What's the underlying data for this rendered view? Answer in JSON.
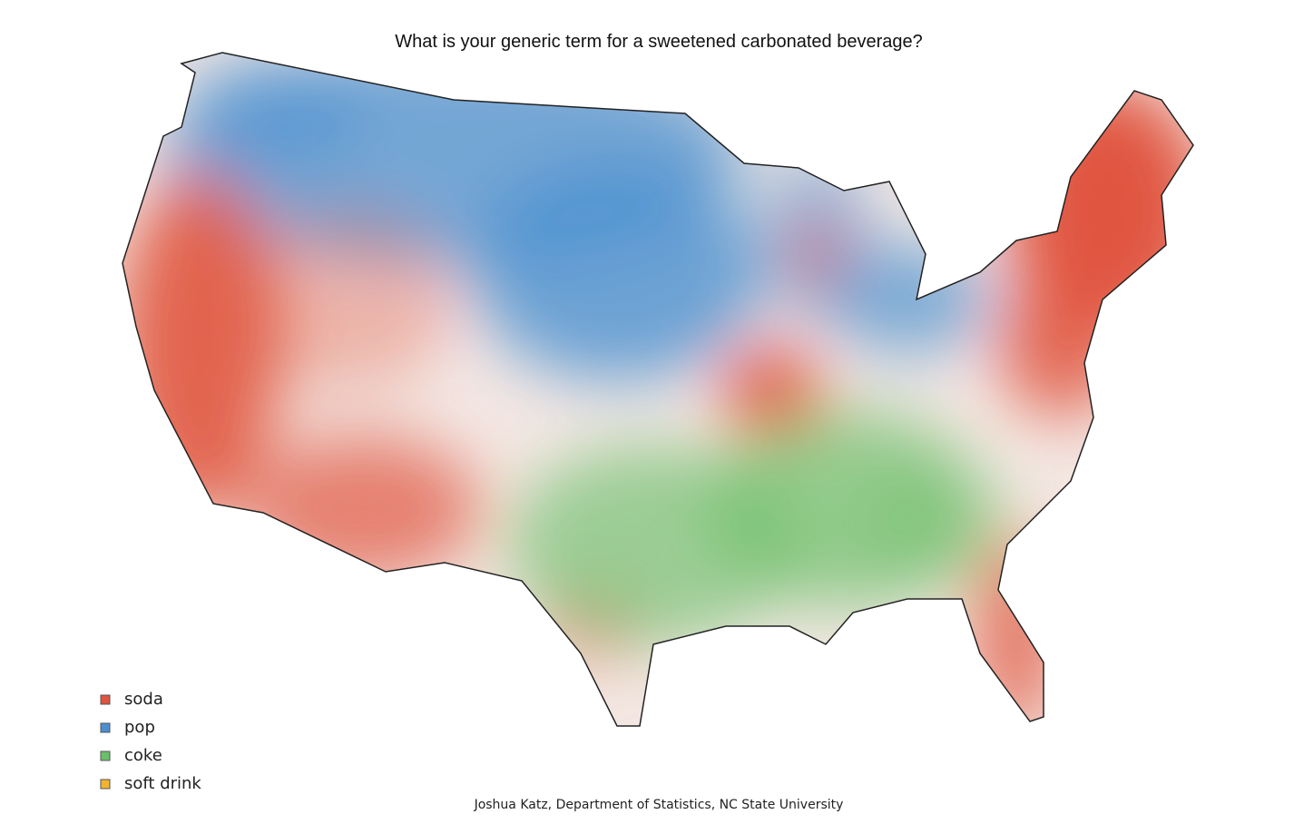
{
  "title": "What is your generic term for a sweetened carbonated beverage?",
  "legend": [
    {
      "label": "soda",
      "color": "#e0553f"
    },
    {
      "label": "pop",
      "color": "#4a90cf"
    },
    {
      "label": "coke",
      "color": "#6cbf6a"
    },
    {
      "label": "soft drink",
      "color": "#f0b430"
    }
  ],
  "credit": "Joshua Katz, Department of Statistics, NC State University"
}
